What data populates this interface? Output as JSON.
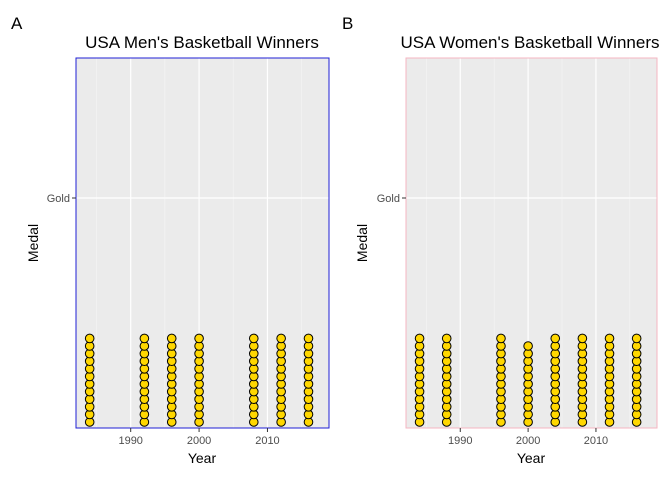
{
  "chart_data": [
    {
      "panel": "A",
      "type": "dotplot",
      "title": "USA Men's Basketball Winners",
      "xlabel": "Year",
      "ylabel": "Medal",
      "x_ticks": [
        1990,
        2000,
        2010
      ],
      "y_ticks": [
        "Gold"
      ],
      "xlim": [
        1982,
        2019
      ],
      "border_color": "#1f1fd6",
      "dot_fill": "#FFD700",
      "points": [
        {
          "year": 1984,
          "count": 12
        },
        {
          "year": 1992,
          "count": 12
        },
        {
          "year": 1996,
          "count": 12
        },
        {
          "year": 2000,
          "count": 12
        },
        {
          "year": 2008,
          "count": 12
        },
        {
          "year": 2012,
          "count": 12
        },
        {
          "year": 2016,
          "count": 12
        }
      ]
    },
    {
      "panel": "B",
      "type": "dotplot",
      "title": "USA Women's Basketball Winners",
      "xlabel": "Year",
      "ylabel": "Medal",
      "x_ticks": [
        1990,
        2000,
        2010
      ],
      "y_ticks": [
        "Gold"
      ],
      "xlim": [
        1982,
        2019
      ],
      "border_color": "#f4b6c2",
      "dot_fill": "#FFD700",
      "points": [
        {
          "year": 1984,
          "count": 12
        },
        {
          "year": 1988,
          "count": 12
        },
        {
          "year": 1996,
          "count": 12
        },
        {
          "year": 2000,
          "count": 11
        },
        {
          "year": 2004,
          "count": 12
        },
        {
          "year": 2008,
          "count": 12
        },
        {
          "year": 2012,
          "count": 12
        },
        {
          "year": 2016,
          "count": 12
        }
      ]
    }
  ]
}
